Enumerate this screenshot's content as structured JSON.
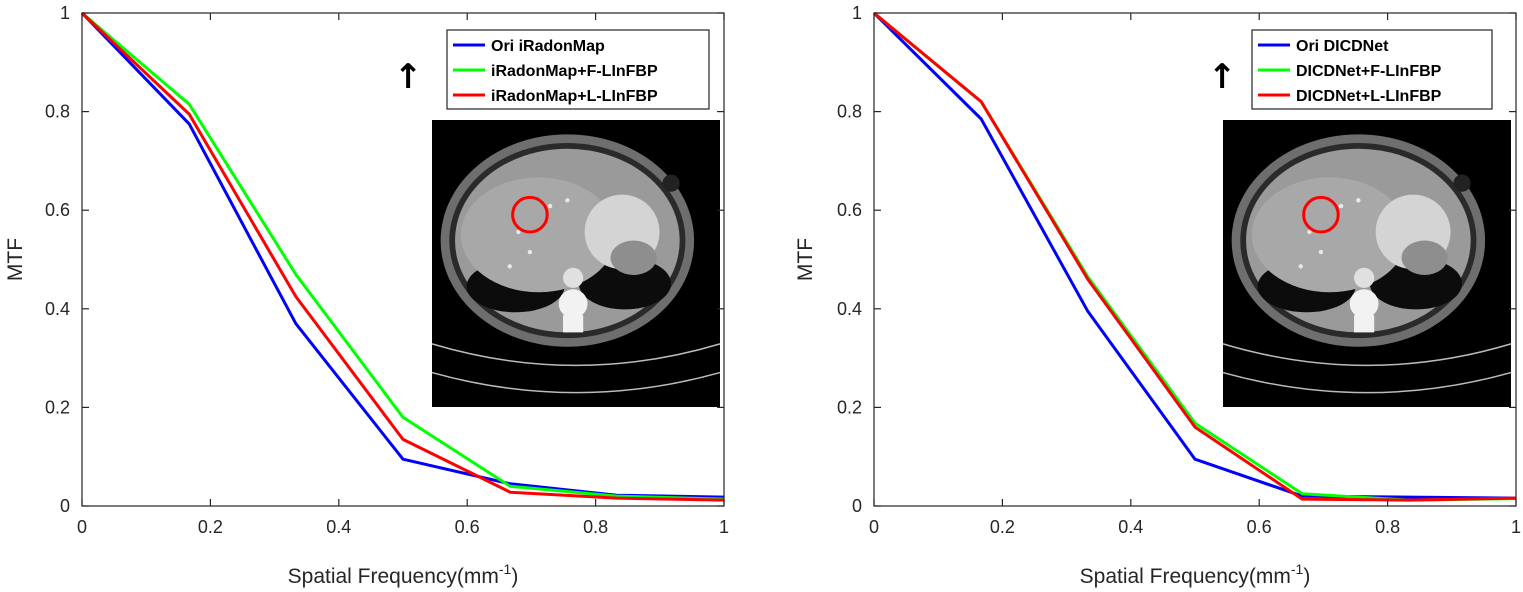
{
  "chart_data": [
    {
      "type": "line",
      "xlabel": "Spatial Frequency(mm",
      "xlabel_sup": "-1",
      "xlabel_close": ")",
      "ylabel": "MTF",
      "xlim": [
        0,
        1
      ],
      "ylim": [
        0,
        1
      ],
      "xticks": [
        "0",
        "0.2",
        "0.4",
        "0.6",
        "0.8",
        "1"
      ],
      "yticks": [
        "0",
        "0.2",
        "0.4",
        "0.6",
        "0.8",
        "1"
      ],
      "legend_position": "top-right",
      "annotation": "↑",
      "inset": "CT slice with red circle marking region of interest",
      "series": [
        {
          "name": "Ori iRadonMap",
          "color": "#0000ff",
          "x": [
            0,
            0.167,
            0.333,
            0.5,
            0.667,
            0.833,
            1
          ],
          "y": [
            1,
            0.775,
            0.37,
            0.095,
            0.045,
            0.022,
            0.018
          ]
        },
        {
          "name": "iRadonMap+F-LInFBP",
          "color": "#00ff00",
          "x": [
            0,
            0.167,
            0.333,
            0.5,
            0.667,
            0.833,
            1
          ],
          "y": [
            1,
            0.815,
            0.47,
            0.18,
            0.04,
            0.02,
            0.014
          ]
        },
        {
          "name": "iRadonMap+L-LInFBP",
          "color": "#ff0000",
          "x": [
            0,
            0.167,
            0.333,
            0.5,
            0.667,
            0.833,
            1
          ],
          "y": [
            1,
            0.795,
            0.425,
            0.135,
            0.028,
            0.016,
            0.012
          ]
        }
      ]
    },
    {
      "type": "line",
      "xlabel": "Spatial Frequency(mm",
      "xlabel_sup": "-1",
      "xlabel_close": ")",
      "ylabel": "MTF",
      "xlim": [
        0,
        1
      ],
      "ylim": [
        0,
        1
      ],
      "xticks": [
        "0",
        "0.2",
        "0.4",
        "0.6",
        "0.8",
        "1"
      ],
      "yticks": [
        "0",
        "0.2",
        "0.4",
        "0.6",
        "0.8",
        "1"
      ],
      "legend_position": "top-right",
      "annotation": "↑",
      "inset": "CT slice with red circle marking region of interest",
      "series": [
        {
          "name": "Ori DICDNet",
          "color": "#0000ff",
          "x": [
            0,
            0.167,
            0.333,
            0.5,
            0.667,
            0.833,
            1
          ],
          "y": [
            1,
            0.785,
            0.395,
            0.095,
            0.02,
            0.018,
            0.016
          ]
        },
        {
          "name": "DICDNet+F-LInFBP",
          "color": "#00ff00",
          "x": [
            0,
            0.167,
            0.333,
            0.5,
            0.667,
            0.833,
            1
          ],
          "y": [
            1,
            0.82,
            0.465,
            0.168,
            0.025,
            0.012,
            0.015
          ]
        },
        {
          "name": "DICDNet+L-LInFBP",
          "color": "#ff0000",
          "x": [
            0,
            0.167,
            0.333,
            0.5,
            0.667,
            0.833,
            1
          ],
          "y": [
            1,
            0.82,
            0.46,
            0.16,
            0.014,
            0.012,
            0.016
          ]
        }
      ]
    }
  ]
}
